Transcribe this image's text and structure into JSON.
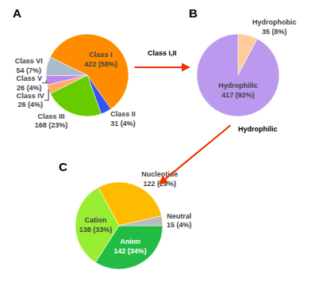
{
  "chart_data": [
    {
      "type": "pie",
      "title": "A",
      "categories": [
        "Class I",
        "Class II",
        "Class III",
        "Class IV",
        "Class V",
        "Class VI"
      ],
      "values": [
        422,
        31,
        168,
        26,
        26,
        54
      ],
      "value_labels": [
        "422 (58%)",
        "31 (4%)",
        "168 (23%)",
        "26 (4%)",
        "26 (4%)",
        "54 (7%)"
      ],
      "colors": [
        "#FF8C00",
        "#3355EE",
        "#66CC00",
        "#FFAA66",
        "#BB88EE",
        "#AABBCC"
      ],
      "data_labels": true,
      "annotations": [
        {
          "text": "Class I,II",
          "color": "#EE3300"
        }
      ]
    },
    {
      "type": "pie",
      "title": "B",
      "categories": [
        "Hydrophobic",
        "Hydrophilic"
      ],
      "values": [
        35,
        417
      ],
      "value_labels": [
        "35 (8%)",
        "417 (92%)"
      ],
      "colors": [
        "#FFCC99",
        "#BB99EE"
      ],
      "data_labels": true,
      "annotations": [
        {
          "text": "Hydrophilic",
          "color": "#EE3300"
        }
      ]
    },
    {
      "type": "pie",
      "title": "C",
      "categories": [
        "Anion",
        "Cation",
        "Nucleotide",
        "Neutral"
      ],
      "values": [
        142,
        138,
        122,
        15
      ],
      "value_labels": [
        "142 (34%)",
        "138 (33%)",
        "122 (29%)",
        "15 (4%)"
      ],
      "colors": [
        "#22BB44",
        "#99EE33",
        "#FFBB00",
        "#BBBBBB"
      ],
      "data_labels": true
    }
  ]
}
